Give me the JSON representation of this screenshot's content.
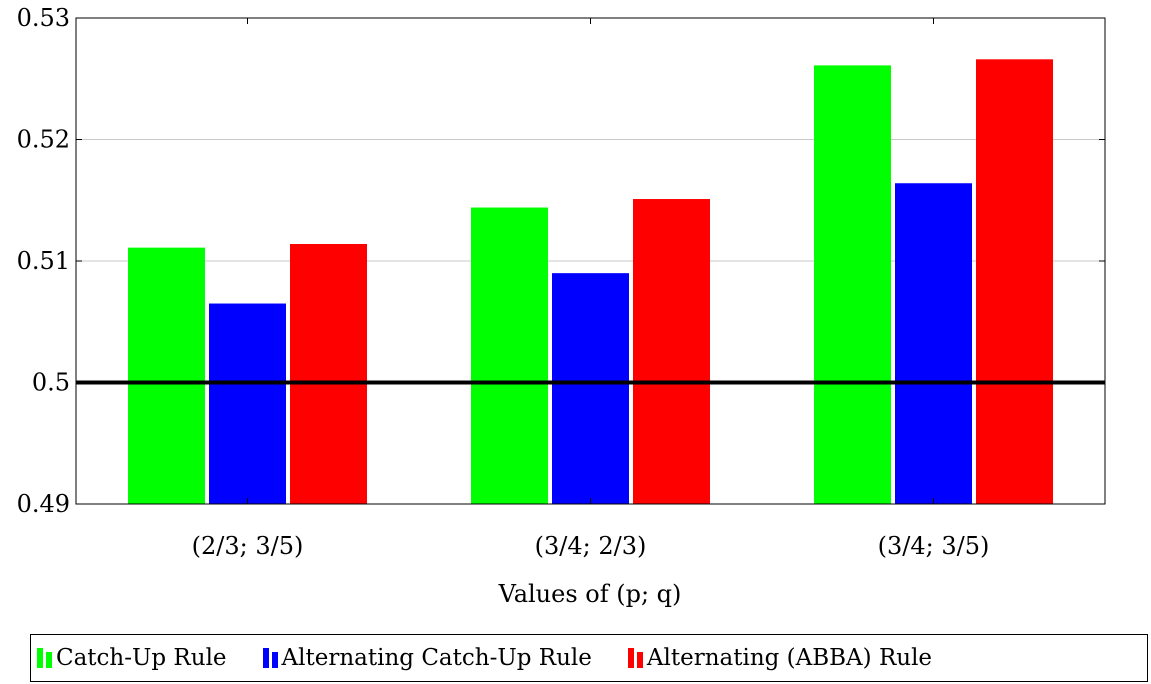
{
  "chart_data": {
    "type": "bar",
    "categories": [
      "(2/3; 3/5)",
      "(3/4; 2/3)",
      "(3/4; 3/5)"
    ],
    "series": [
      {
        "name": "Catch-Up Rule",
        "color": "#00ff00",
        "values": [
          0.5111,
          0.5144,
          0.5261
        ]
      },
      {
        "name": "Alternating Catch-Up Rule",
        "color": "#0000ff",
        "values": [
          0.5065,
          0.509,
          0.5164
        ]
      },
      {
        "name": "Alternating (ABBA) Rule",
        "color": "#ff0000",
        "values": [
          0.5114,
          0.5151,
          0.5266
        ]
      }
    ],
    "title": "",
    "xlabel": "Values of (p; q)",
    "ylabel": "",
    "ylim": [
      0.49,
      0.53
    ],
    "yticks": [
      "0.49",
      "0.5",
      "0.51",
      "0.52",
      "0.53"
    ],
    "reference_line": 0.5,
    "grid": "horizontal",
    "legend_position": "bottom"
  }
}
